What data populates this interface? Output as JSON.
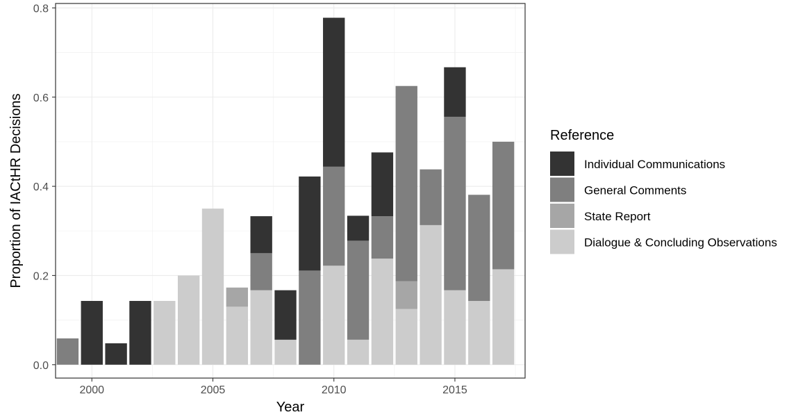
{
  "chart_data": {
    "type": "bar",
    "stacked": true,
    "xlabel": "Year",
    "ylabel": "Proportion of IACtHR Decisions",
    "xlim": [
      1998.5,
      2017.9
    ],
    "ylim": [
      -0.03,
      0.81
    ],
    "x_ticks": [
      2000,
      2005,
      2010,
      2015
    ],
    "x_tick_labels": [
      "2000",
      "2005",
      "2010",
      "2015"
    ],
    "y_ticks": [
      0.0,
      0.2,
      0.4,
      0.6,
      0.8
    ],
    "y_tick_labels": [
      "0.0",
      "0.2",
      "0.4",
      "0.6",
      "0.8"
    ],
    "grid": true,
    "legend_position": "right",
    "legend_title": "Reference",
    "x": [
      1999,
      2000,
      2001,
      2002,
      2003,
      2004,
      2005,
      2006,
      2007,
      2008,
      2009,
      2010,
      2011,
      2012,
      2013,
      2014,
      2015,
      2016,
      2017
    ],
    "series": [
      {
        "name": "Dialogue & Concluding Observations",
        "color": "#cccccc",
        "values": [
          0,
          0,
          0,
          0,
          0.143,
          0.2,
          0.35,
          0.13,
          0.167,
          0.056,
          0,
          0.222,
          0.056,
          0.238,
          0.125,
          0.313,
          0.167,
          0.143,
          0.214
        ]
      },
      {
        "name": "State Report",
        "color": "#a6a6a6",
        "values": [
          0,
          0,
          0,
          0,
          0,
          0,
          0,
          0.043,
          0,
          0,
          0,
          0,
          0,
          0,
          0.062,
          0,
          0,
          0,
          0
        ]
      },
      {
        "name": "General Comments",
        "color": "#7f7f7f",
        "values": [
          0.059,
          0,
          0,
          0,
          0,
          0,
          0,
          0,
          0.083,
          0,
          0.211,
          0.222,
          0.222,
          0.095,
          0.438,
          0.125,
          0.389,
          0.238,
          0.286
        ]
      },
      {
        "name": "Individual Communications",
        "color": "#333333",
        "values": [
          0,
          0.143,
          0.048,
          0.143,
          0,
          0,
          0,
          0,
          0.083,
          0.111,
          0.211,
          0.334,
          0.056,
          0.143,
          0,
          0,
          0.111,
          0,
          0
        ]
      }
    ],
    "legend_order": [
      "Individual Communications",
      "General Comments",
      "State Report",
      "Dialogue & Concluding Observations"
    ]
  }
}
